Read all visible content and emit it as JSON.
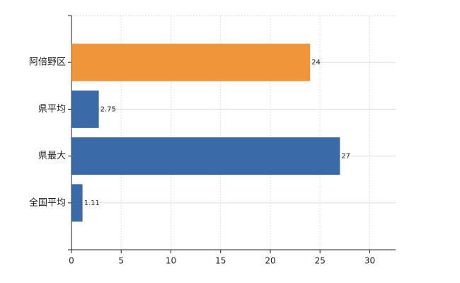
{
  "chart_data": {
    "type": "bar",
    "orientation": "horizontal",
    "categories": [
      "阿倍野区",
      "県平均",
      "県最大",
      "全国平均"
    ],
    "values": [
      24,
      2.75,
      27,
      1.11
    ],
    "colors": [
      "#f0953a",
      "#3b6aa8",
      "#3b6aa8",
      "#3b6aa8"
    ],
    "xlim": [
      0,
      32.6
    ],
    "xticks": [
      0,
      5,
      10,
      15,
      20,
      25,
      30
    ],
    "grid": true
  }
}
